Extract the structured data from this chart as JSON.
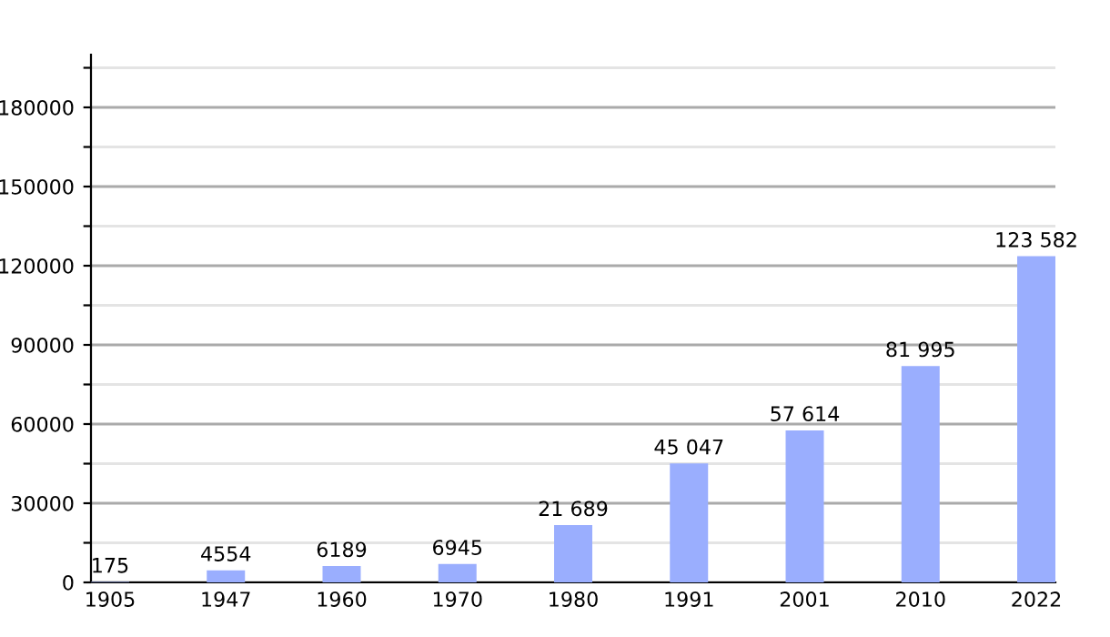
{
  "chart_data": {
    "type": "bar",
    "categories": [
      "1905",
      "1947",
      "1960",
      "1970",
      "1980",
      "1991",
      "2001",
      "2010",
      "2022"
    ],
    "values": [
      175,
      4554,
      6189,
      6945,
      21689,
      45047,
      57614,
      81995,
      123582
    ],
    "value_labels": [
      "175",
      "4554",
      "6189",
      "6945",
      "21 689",
      "45 047",
      "57 614",
      "81 995",
      "123 582"
    ],
    "color": "#9aaefe",
    "ylim": [
      0,
      200000
    ],
    "yticks": [
      0,
      {
        "value": 15000,
        "label": null
      },
      30000,
      {
        "value": 45000,
        "label": null
      },
      60000,
      {
        "value": 75000,
        "label": null
      },
      90000,
      {
        "value": 105000,
        "label": null
      },
      120000,
      {
        "value": 135000,
        "label": null
      },
      150000,
      {
        "value": 165000,
        "label": null
      },
      180000,
      {
        "value": 195000,
        "label": null
      }
    ],
    "grid": "y"
  }
}
